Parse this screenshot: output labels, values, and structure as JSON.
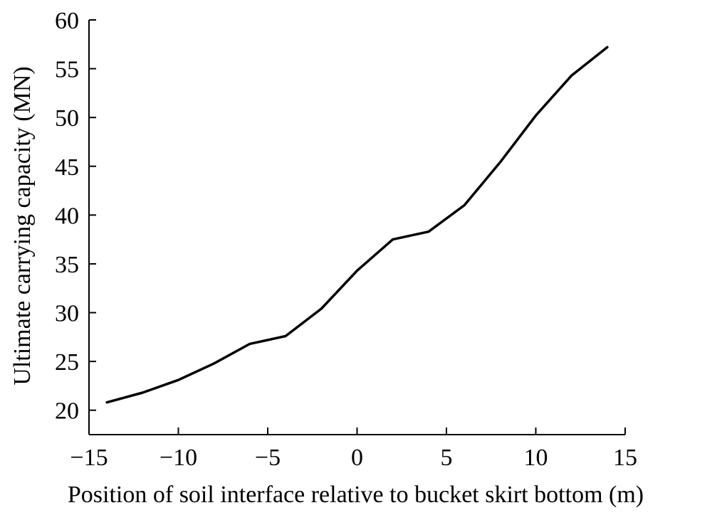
{
  "chart_data": {
    "type": "line",
    "title": "",
    "xlabel": "Position of soil interface relative to bucket skirt bottom (m)",
    "ylabel": "Ultimate carrying capacity (MN)",
    "xlim": [
      -15,
      15
    ],
    "ylim": [
      17.5,
      60
    ],
    "xticks": [
      -15,
      -10,
      -5,
      0,
      5,
      10,
      15
    ],
    "xtick_labels": [
      "−15",
      "−10",
      "−5",
      "0",
      "5",
      "10",
      "15"
    ],
    "yticks": [
      20,
      25,
      30,
      35,
      40,
      45,
      50,
      55,
      60
    ],
    "ytick_labels": [
      "20",
      "25",
      "30",
      "35",
      "40",
      "45",
      "50",
      "55",
      "60"
    ],
    "grid": false,
    "series": [
      {
        "x": [
          -14,
          -12,
          -10,
          -8,
          -6,
          -4,
          -2,
          0,
          2,
          4,
          6,
          8,
          10,
          12,
          14
        ],
        "y": [
          20.8,
          21.8,
          23.1,
          24.8,
          26.8,
          27.6,
          30.4,
          34.3,
          37.5,
          38.3,
          41.0,
          45.4,
          50.2,
          54.3,
          57.2
        ],
        "color": "#000000"
      }
    ]
  }
}
